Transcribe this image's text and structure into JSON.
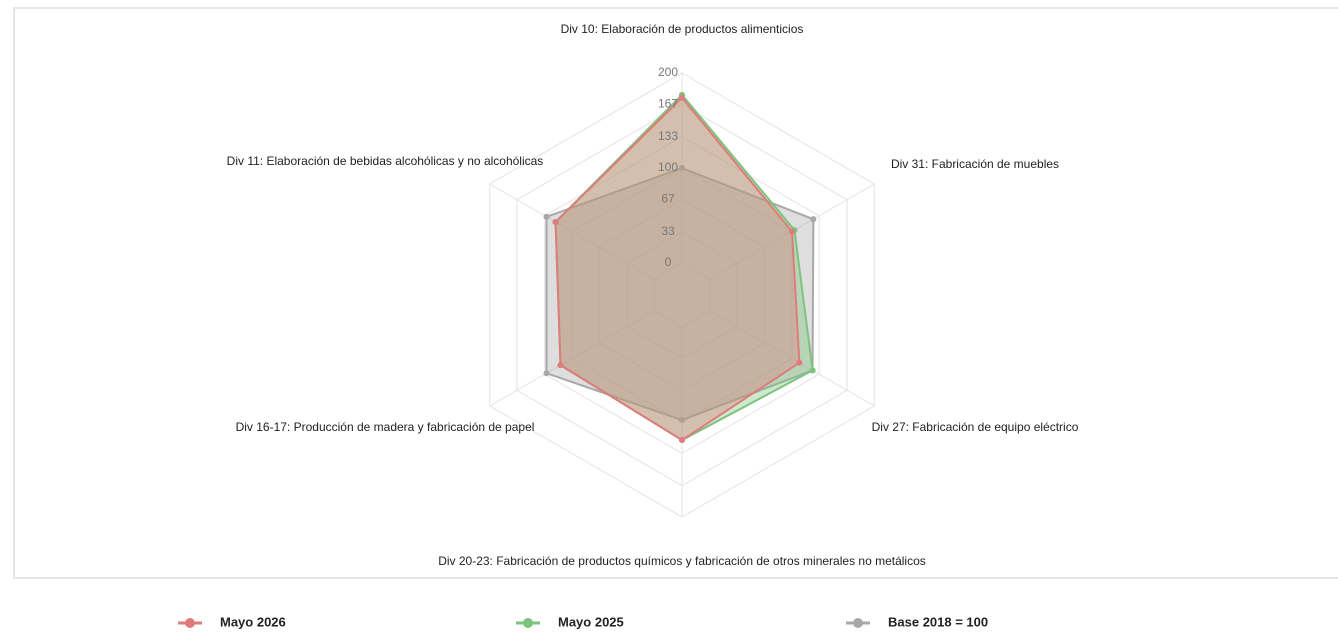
{
  "chart_data": {
    "type": "radar",
    "categories": [
      "Div 10: Elaboración de productos alimenticios",
      "Div 31: Fabricación de muebles",
      "Div 27: Fabricación de equipo eléctrico",
      "Div 20-23: Fabricación de productos químicos y fabricación de otros minerales no metálicos",
      "Div 16-17: Producción de madera y fabricación de papel",
      "Div 11: Elaboración de bebidas alcohólicas y no alcohólicas"
    ],
    "series": [
      {
        "name": "Mayo 2026",
        "color": "#e07b7b",
        "values": [
          174,
          100,
          109,
          119,
          114,
          120
        ]
      },
      {
        "name": "Mayo 2025",
        "color": "#7cc47c",
        "values": [
          177,
          103,
          125,
          119,
          114,
          120
        ]
      },
      {
        "name": "Base 2018 = 100",
        "color": "#a8a8a8",
        "values": [
          100,
          126,
          125,
          98,
          131,
          131
        ]
      }
    ],
    "rlim": [
      0,
      200
    ],
    "rticks": [
      0,
      33,
      67,
      100,
      133,
      167,
      200
    ],
    "grid": true,
    "legend": "bottom"
  }
}
